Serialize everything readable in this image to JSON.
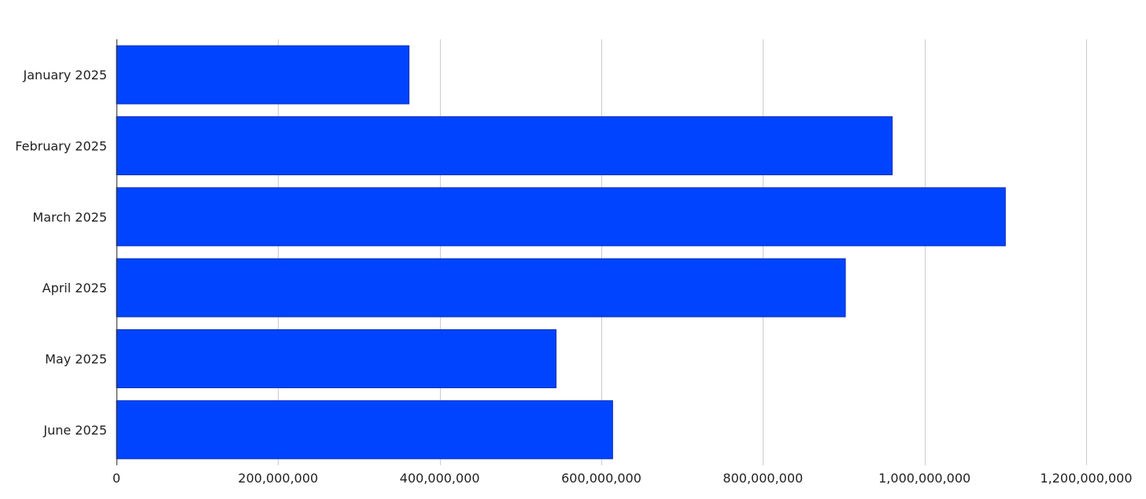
{
  "chart_data": {
    "type": "bar",
    "orientation": "horizontal",
    "title": "",
    "xlabel": "",
    "ylabel": "",
    "categories": [
      "January 2025",
      "February 2025",
      "March 2025",
      "April 2025",
      "May 2025",
      "June 2025"
    ],
    "values": [
      362000000,
      960000000,
      1100000000,
      902000000,
      544000000,
      614000000
    ],
    "xlim": [
      0,
      1200000000
    ],
    "xticks": [
      0,
      200000000,
      400000000,
      600000000,
      800000000,
      1000000000,
      1200000000
    ],
    "xtick_labels": [
      "0",
      "200,000,000",
      "400,000,000",
      "600,000,000",
      "800,000,000",
      "1,000,000,000",
      "1,200,000,000"
    ],
    "grid": "vertical",
    "legend": "none",
    "bar_color": "#0044ff"
  }
}
